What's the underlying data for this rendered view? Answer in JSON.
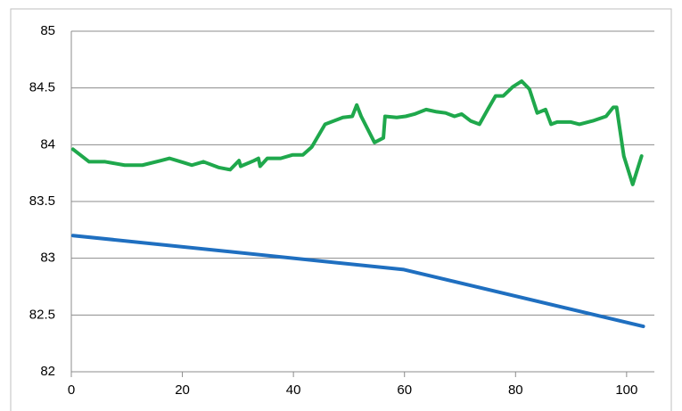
{
  "chart_data": {
    "type": "line",
    "xlim": [
      0,
      105
    ],
    "xticks": [
      0,
      20,
      40,
      60,
      80,
      100
    ],
    "ylim": [
      82,
      85
    ],
    "yticks": [
      82,
      82.5,
      83,
      83.5,
      84,
      84.5,
      85
    ],
    "grid": true,
    "series": [
      {
        "color": "#1fa84c",
        "x": [
          0.3,
          3.2,
          6.1,
          9.6,
          12.8,
          16.1,
          17.7,
          20.4,
          21.7,
          23.8,
          26.5,
          28.6,
          30.2,
          30.5,
          32.9,
          33.7,
          34.0,
          35.3,
          37.7,
          39.8,
          41.7,
          43.3,
          45.7,
          48.9,
          50.6,
          51.4,
          52.2,
          54.6,
          56.2,
          56.5,
          58.6,
          60.2,
          61.8,
          63.9,
          65.8,
          67.4,
          69.0,
          70.3,
          71.9,
          73.5,
          75.1,
          76.4,
          77.8,
          79.5,
          81.1,
          82.5,
          83.9,
          85.4,
          86.4,
          87.5,
          89.9,
          91.5,
          93.9,
          96.3,
          97.6,
          98.2,
          99.5,
          101.1,
          102.7
        ],
        "values": [
          83.96,
          83.85,
          83.85,
          83.82,
          83.82,
          83.86,
          83.88,
          83.84,
          83.82,
          83.85,
          83.8,
          83.78,
          83.86,
          83.81,
          83.86,
          83.88,
          83.81,
          83.88,
          83.88,
          83.91,
          83.91,
          83.98,
          84.18,
          84.24,
          84.25,
          84.35,
          84.25,
          84.02,
          84.06,
          84.25,
          84.24,
          84.25,
          84.27,
          84.31,
          84.29,
          84.28,
          84.25,
          84.27,
          84.21,
          84.18,
          84.32,
          84.43,
          84.43,
          84.51,
          84.56,
          84.49,
          84.28,
          84.31,
          84.18,
          84.2,
          84.2,
          84.18,
          84.21,
          84.25,
          84.33,
          84.33,
          83.9,
          83.65,
          83.9
        ]
      },
      {
        "color": "#1f6fc0",
        "x": [
          0.3,
          59.9,
          103
        ],
        "values": [
          83.2,
          82.9,
          82.4
        ]
      }
    ]
  }
}
